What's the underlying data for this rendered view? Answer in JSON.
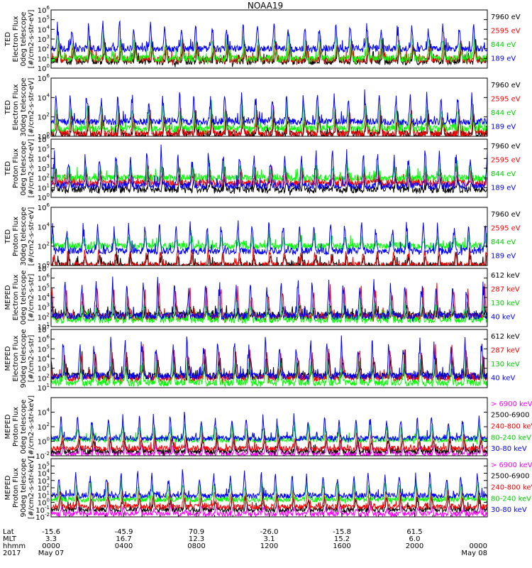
{
  "title": "NOAA19",
  "colors": {
    "blue": "#0000ff",
    "red": "#ff0000",
    "green": "#00ff00",
    "black": "#000000",
    "magenta": "#ff00ff"
  },
  "chart_data": [
    {
      "type": "line",
      "instrument": "TED",
      "ylabel": [
        "TED",
        "Electron Flux",
        "0deg telescope",
        "[#/cm2-s-str-eV]"
      ],
      "scale": "log",
      "ylim_exp": [
        0,
        6
      ],
      "ticks": [
        {
          "base": "10",
          "exp": "0"
        },
        {
          "base": "10",
          "exp": "1"
        },
        {
          "base": "10",
          "exp": "2"
        },
        {
          "base": "10",
          "exp": "3"
        },
        {
          "base": "10",
          "exp": "4"
        },
        {
          "base": "10",
          "exp": "5"
        },
        {
          "base": "10",
          "exp": "6"
        }
      ],
      "series": [
        {
          "name": "7960 eV",
          "color": "#000000",
          "base": 0.7,
          "burst": 2.6
        },
        {
          "name": "2595 eV",
          "color": "#ff0000",
          "base": 0.9,
          "burst": 3.0
        },
        {
          "name": "844 eV",
          "color": "#00ff00",
          "base": 1.0,
          "burst": 3.3
        },
        {
          "name": "189 eV",
          "color": "#0000ff",
          "base": 2.0,
          "burst": 4.6
        }
      ]
    },
    {
      "type": "line",
      "instrument": "TED",
      "ylabel": [
        "TED",
        "Electron Flux",
        "30deg telescope",
        "[#/cm2-s-str-eV]"
      ],
      "scale": "log",
      "ylim_exp": [
        0,
        6
      ],
      "ticks": [
        {
          "base": "10",
          "exp": "0"
        },
        {
          "base": "10",
          "exp": "2"
        },
        {
          "base": "10",
          "exp": "4"
        },
        {
          "base": "10",
          "exp": "6"
        }
      ],
      "series": [
        {
          "name": "7960 eV",
          "color": "#000000",
          "base": 0.2,
          "burst": 2.4
        },
        {
          "name": "2595 eV",
          "color": "#ff0000",
          "base": 0.3,
          "burst": 2.8
        },
        {
          "name": "844 eV",
          "color": "#00ff00",
          "base": 0.8,
          "burst": 3.2
        },
        {
          "name": "189 eV",
          "color": "#0000ff",
          "base": 1.5,
          "burst": 4.3
        }
      ]
    },
    {
      "type": "line",
      "instrument": "TED",
      "ylabel": [
        "TED",
        "Proton Flux",
        "0deg telescope",
        "[#/cm2-s-str-eV]"
      ],
      "scale": "log",
      "ylim_exp": [
        0,
        6
      ],
      "ticks": [
        {
          "base": "10",
          "exp": "0"
        },
        {
          "base": "10",
          "exp": "1"
        },
        {
          "base": "10",
          "exp": "2"
        },
        {
          "base": "10",
          "exp": "3"
        },
        {
          "base": "10",
          "exp": "4"
        },
        {
          "base": "10",
          "exp": "5"
        },
        {
          "base": "10",
          "exp": "6"
        }
      ],
      "series": [
        {
          "name": "7960 eV",
          "color": "#000000",
          "base": 0.8,
          "burst": 2.6
        },
        {
          "name": "2595 eV",
          "color": "#ff0000",
          "base": 1.5,
          "burst": 3.1
        },
        {
          "name": "844 eV",
          "color": "#00ff00",
          "base": 2.0,
          "burst": 3.4
        },
        {
          "name": "189 eV",
          "color": "#0000ff",
          "base": 1.2,
          "burst": 4.8
        }
      ]
    },
    {
      "type": "line",
      "instrument": "TED",
      "ylabel": [
        "TED",
        "Proton Flux",
        "30deg telescope",
        "[#/cm2-s-str-eV]"
      ],
      "scale": "log",
      "ylim_exp": [
        0,
        6
      ],
      "ticks": [
        {
          "base": "10",
          "exp": "0"
        },
        {
          "base": "10",
          "exp": "2"
        },
        {
          "base": "10",
          "exp": "4"
        },
        {
          "base": "10",
          "exp": "6"
        }
      ],
      "series": [
        {
          "name": "7960 eV",
          "color": "#000000",
          "base": 0.0,
          "burst": 1.2
        },
        {
          "name": "2595 eV",
          "color": "#ff0000",
          "base": 0.0,
          "burst": 1.6
        },
        {
          "name": "844 eV",
          "color": "#00ff00",
          "base": 2.0,
          "burst": 3.0
        },
        {
          "name": "189 eV",
          "color": "#0000ff",
          "base": 1.5,
          "burst": 4.4
        }
      ]
    },
    {
      "type": "line",
      "instrument": "MEPED",
      "ylabel": [
        "MEPED",
        "Electron Flux",
        "0deg telescope",
        "[#/cm2-s-str]"
      ],
      "scale": "log",
      "ylim_exp": [
        1,
        7
      ],
      "ticks": [
        {
          "base": "10",
          "exp": "1"
        },
        {
          "base": "10",
          "exp": "2"
        },
        {
          "base": "10",
          "exp": "3"
        },
        {
          "base": "10",
          "exp": "4"
        },
        {
          "base": "10",
          "exp": "5"
        },
        {
          "base": "10",
          "exp": "6"
        },
        {
          "base": "10",
          "exp": "7"
        }
      ],
      "series": [
        {
          "name": "612 keV",
          "color": "#000000",
          "base": 2.2,
          "burst": 3.0
        },
        {
          "name": "287 keV",
          "color": "#ff0000",
          "base": 2.0,
          "burst": 5.0
        },
        {
          "name": "130 keV",
          "color": "#00ff00",
          "base": 1.7,
          "burst": 3.5
        },
        {
          "name": "40 keV",
          "color": "#0000ff",
          "base": 2.1,
          "burst": 5.8
        }
      ]
    },
    {
      "type": "line",
      "instrument": "MEPED",
      "ylabel": [
        "MEPED",
        "Electron Flux",
        "90deg telescope",
        "[#/cm2-s-str]"
      ],
      "scale": "log",
      "ylim_exp": [
        1,
        7
      ],
      "ticks": [
        {
          "base": "10",
          "exp": "1"
        },
        {
          "base": "10",
          "exp": "2"
        },
        {
          "base": "10",
          "exp": "3"
        },
        {
          "base": "10",
          "exp": "4"
        },
        {
          "base": "10",
          "exp": "5"
        },
        {
          "base": "10",
          "exp": "6"
        },
        {
          "base": "10",
          "exp": "7"
        }
      ],
      "series": [
        {
          "name": "612 keV",
          "color": "#000000",
          "base": 2.2,
          "burst": 4.3
        },
        {
          "name": "287 keV",
          "color": "#ff0000",
          "base": 2.0,
          "burst": 5.0
        },
        {
          "name": "130 keV",
          "color": "#00ff00",
          "base": 1.5,
          "burst": 3.8
        },
        {
          "name": "40 keV",
          "color": "#0000ff",
          "base": 2.2,
          "burst": 6.0
        }
      ]
    },
    {
      "type": "line",
      "instrument": "MEPED",
      "ylabel": [
        "MEPED",
        "Proton Flux",
        "0deg telescope",
        "[#/cm2-s-str-keV]"
      ],
      "scale": "log",
      "ylim_exp": [
        -2,
        6
      ],
      "ticks": [
        {
          "base": "10",
          "exp": "-2"
        },
        {
          "base": "10",
          "exp": "0"
        },
        {
          "base": "10",
          "exp": "2"
        },
        {
          "base": "10",
          "exp": "4"
        }
      ],
      "series": [
        {
          "name": "> 6900 keV",
          "color": "#ff00ff",
          "base": -1.7,
          "burst": -0.6
        },
        {
          "name": "2500-6900",
          "color": "#000000",
          "base": -1.4,
          "burst": 0.5
        },
        {
          "name": "240-800 keV",
          "color": "#ff0000",
          "base": -1.0,
          "burst": 1.5
        },
        {
          "name": "80-240 keV",
          "color": "#00ff00",
          "base": 0.2,
          "burst": 2.3
        },
        {
          "name": "30-80 keV",
          "color": "#0000ff",
          "base": 0.4,
          "burst": 3.5
        }
      ]
    },
    {
      "type": "line",
      "instrument": "MEPED",
      "ylabel": [
        "MEPED",
        "Proton Flux",
        "90deg telescope",
        "[#/cm2-s-str-keV]"
      ],
      "scale": "log",
      "ylim_exp": [
        -2,
        6
      ],
      "ticks": [
        {
          "base": "10",
          "exp": "-2"
        },
        {
          "base": "10",
          "exp": "-1"
        },
        {
          "base": "10",
          "exp": "0"
        },
        {
          "base": "10",
          "exp": "1"
        },
        {
          "base": "10",
          "exp": "2"
        },
        {
          "base": "10",
          "exp": "3"
        },
        {
          "base": "10",
          "exp": "4"
        },
        {
          "base": "10",
          "exp": "5"
        }
      ],
      "series": [
        {
          "name": "> 6900 keV",
          "color": "#ff00ff",
          "base": -1.6,
          "burst": -0.6
        },
        {
          "name": "2500-6900",
          "color": "#000000",
          "base": -1.0,
          "burst": 1.0
        },
        {
          "name": "240-800 keV",
          "color": "#ff0000",
          "base": -0.6,
          "burst": 2.0
        },
        {
          "name": "80-240 keV",
          "color": "#00ff00",
          "base": 0.4,
          "burst": 2.8
        },
        {
          "name": "30-80 keV",
          "color": "#0000ff",
          "base": 0.9,
          "burst": 4.0
        }
      ]
    }
  ],
  "x_axis": {
    "row_labels": [
      "Lat",
      "MLT",
      "hhmm",
      "2017"
    ],
    "ticks": [
      {
        "lat": "-15.6",
        "mlt": "3.3",
        "hhmm": "0000",
        "date": "May 07"
      },
      {
        "lat": "-45.9",
        "mlt": "16.7",
        "hhmm": "0400",
        "date": ""
      },
      {
        "lat": "70.9",
        "mlt": "12.3",
        "hhmm": "0800",
        "date": ""
      },
      {
        "lat": "-26.0",
        "mlt": "3.1",
        "hhmm": "1200",
        "date": ""
      },
      {
        "lat": "-15.8",
        "mlt": "15.2",
        "hhmm": "1600",
        "date": ""
      },
      {
        "lat": "61.5",
        "mlt": "6.0",
        "hhmm": "2000",
        "date": ""
      },
      {
        "lat": "",
        "mlt": "",
        "hhmm": "0000",
        "date": "May 08"
      }
    ],
    "hours_total": 24,
    "orbit_period_min": 102
  }
}
